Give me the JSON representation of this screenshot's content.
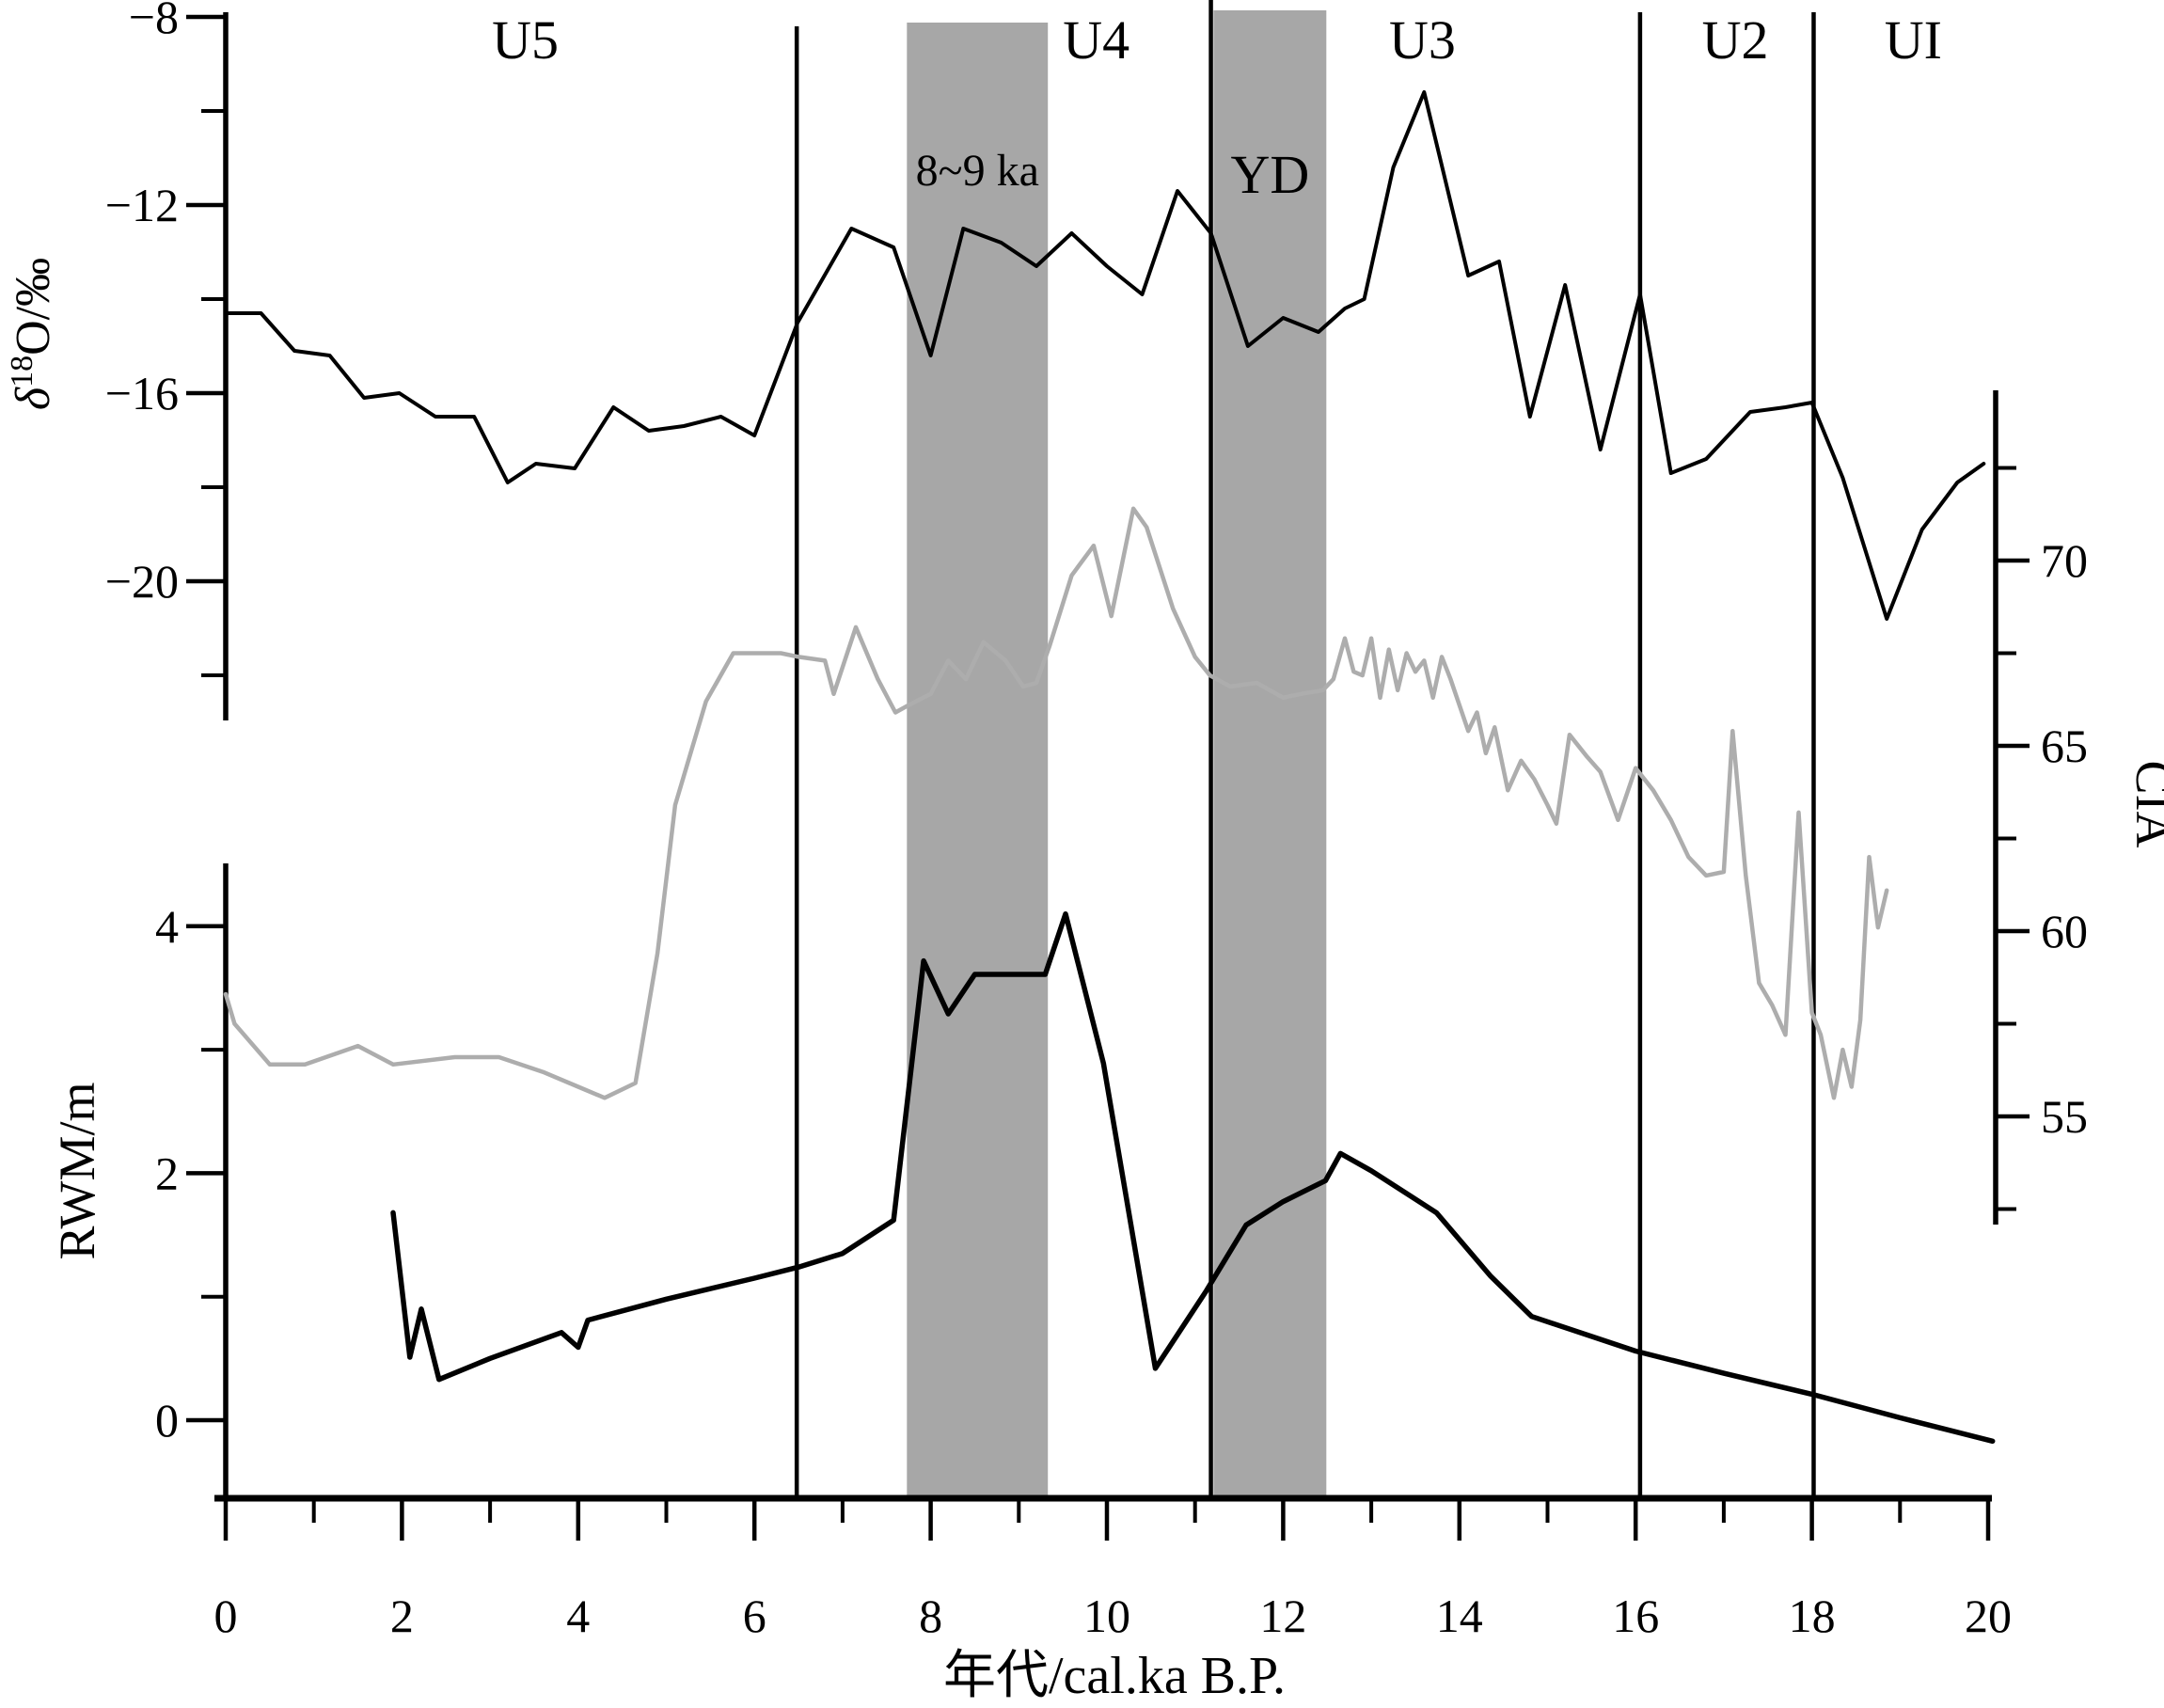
{
  "figure_title": "",
  "chart_data": {
    "type": "line",
    "xlabel": "年代/cal.ka B.P.",
    "xlim": [
      0,
      20
    ],
    "grid": false,
    "legend": "none",
    "x_axis": {
      "major_ticks": [
        0,
        2,
        4,
        6,
        8,
        10,
        12,
        14,
        16,
        18,
        20
      ],
      "minor_ticks": [
        1,
        3,
        5,
        7,
        9,
        11,
        13,
        15,
        17,
        19
      ]
    },
    "axes": {
      "d18o": {
        "label_prefix": "δ",
        "label_sup": "18",
        "label_suffix": "O/‰",
        "side": "left",
        "major_ticks": [
          -8,
          -12,
          -16,
          -20
        ],
        "minor_ticks": [
          -10,
          -14,
          -18,
          -22
        ],
        "range": [
          -22.8,
          -7.9
        ]
      },
      "rwm": {
        "label": "RWM/m",
        "side": "left",
        "major_ticks": [
          4,
          2,
          0
        ],
        "minor_ticks": [
          3,
          1
        ],
        "range": [
          -0.6,
          4.5
        ]
      },
      "cia": {
        "label": "CIA",
        "side": "right",
        "major_ticks": [
          70,
          65,
          60,
          55
        ],
        "minor_ticks": [
          72.5,
          67.5,
          62.5,
          57.5,
          52.5
        ],
        "range": [
          52.1,
          72.9
        ]
      }
    },
    "zones": {
      "labels": [
        "U5",
        "U4",
        "U3",
        "U2",
        "UI"
      ],
      "label_positions_ka": [
        3.4,
        9.88,
        13.58,
        17.13,
        19.15
      ],
      "boundaries_ka": [
        6.48,
        11.18,
        16.05,
        18.02
      ]
    },
    "bands": [
      {
        "label": "8~9 ka",
        "from_ka": 7.73,
        "to_ka": 9.33,
        "color": "#a7a7a7"
      },
      {
        "label": "YD",
        "from_ka": 11.21,
        "to_ka": 12.49,
        "color": "#a7a7a7"
      }
    ],
    "series": [
      {
        "name": "delta-18-O",
        "axis": "d18o",
        "color": "#000000",
        "x": [
          0,
          0.4,
          0.78,
          1.18,
          1.57,
          1.97,
          2.38,
          2.82,
          3.2,
          3.52,
          3.96,
          4.4,
          4.8,
          5.2,
          5.62,
          6.0,
          6.49,
          7.1,
          7.58,
          8.0,
          8.37,
          8.8,
          9.2,
          9.6,
          10.0,
          10.4,
          10.8,
          11.18,
          11.6,
          12.0,
          12.4,
          12.7,
          12.92,
          13.25,
          13.6,
          14.1,
          14.45,
          14.8,
          15.2,
          15.6,
          16.05,
          16.4,
          16.8,
          17.3,
          17.7,
          18.0,
          18.35,
          18.6,
          18.85,
          19.25,
          19.65,
          19.95
        ],
        "y": [
          -14.3,
          -14.3,
          -15.1,
          -15.2,
          -16.1,
          -16.0,
          -16.5,
          -16.5,
          -17.9,
          -17.5,
          -17.6,
          -16.3,
          -16.8,
          -16.7,
          -16.5,
          -16.9,
          -14.5,
          -12.5,
          -12.9,
          -15.2,
          -12.5,
          -12.8,
          -13.3,
          -12.6,
          -13.3,
          -13.9,
          -11.7,
          -12.6,
          -15.0,
          -14.4,
          -14.7,
          -14.2,
          -14.0,
          -11.2,
          -9.6,
          -13.5,
          -13.2,
          -16.5,
          -13.7,
          -17.2,
          -13.9,
          -17.7,
          -17.4,
          -16.4,
          -16.3,
          -16.2,
          -17.8,
          -19.3,
          -20.8,
          -18.9,
          -17.9,
          -17.5
        ]
      },
      {
        "name": "CIA",
        "axis": "cia",
        "color": "#adadad",
        "x": [
          0,
          0.1,
          0.5,
          0.9,
          1.5,
          1.9,
          2.6,
          3.1,
          3.6,
          4.0,
          4.3,
          4.65,
          4.9,
          5.1,
          5.45,
          5.76,
          6.3,
          6.5,
          6.8,
          6.9,
          7.15,
          7.4,
          7.6,
          7.75,
          8.0,
          8.2,
          8.4,
          8.6,
          8.85,
          9.05,
          9.2,
          9.35,
          9.6,
          9.85,
          10.05,
          10.3,
          10.45,
          10.75,
          11.0,
          11.17,
          11.4,
          11.7,
          12.0,
          12.2,
          12.45,
          12.57,
          12.7,
          12.8,
          12.9,
          13.0,
          13.1,
          13.2,
          13.3,
          13.4,
          13.5,
          13.6,
          13.7,
          13.8,
          13.9,
          14.0,
          14.1,
          14.2,
          14.3,
          14.4,
          14.55,
          14.7,
          14.85,
          15.0,
          15.1,
          15.25,
          15.45,
          15.6,
          15.8,
          16.0,
          16.2,
          16.4,
          16.6,
          16.8,
          17.0,
          17.1,
          17.25,
          17.4,
          17.55,
          17.7,
          17.85,
          18.0,
          18.1,
          18.25,
          18.35,
          18.45,
          18.55,
          18.65,
          18.75,
          18.85
        ],
        "y": [
          58.3,
          57.5,
          56.4,
          56.4,
          56.9,
          56.4,
          56.6,
          56.6,
          56.2,
          55.8,
          55.5,
          55.9,
          59.4,
          63.4,
          66.2,
          67.5,
          67.5,
          67.4,
          67.3,
          66.4,
          68.2,
          66.8,
          65.9,
          66.1,
          66.4,
          67.3,
          66.8,
          67.8,
          67.3,
          66.6,
          66.7,
          67.7,
          69.6,
          70.4,
          68.5,
          71.4,
          70.9,
          68.7,
          67.4,
          66.9,
          66.6,
          66.7,
          66.3,
          66.4,
          66.5,
          66.8,
          67.9,
          67.0,
          66.9,
          67.9,
          66.3,
          67.6,
          66.5,
          67.5,
          67.0,
          67.3,
          66.3,
          67.4,
          66.8,
          66.1,
          65.4,
          65.9,
          64.8,
          65.5,
          63.8,
          64.6,
          64.1,
          63.4,
          62.9,
          65.3,
          64.7,
          64.3,
          63.0,
          64.4,
          63.8,
          63.0,
          62.0,
          61.5,
          61.6,
          65.4,
          61.5,
          58.6,
          58.0,
          57.2,
          63.2,
          57.8,
          57.2,
          55.5,
          56.8,
          55.8,
          57.6,
          62.0,
          60.1,
          61.1
        ]
      },
      {
        "name": "RWM",
        "axis": "rwm",
        "color": "#000000",
        "x": [
          1.9,
          2.09,
          2.22,
          2.42,
          3.0,
          3.81,
          4.0,
          4.11,
          5.0,
          6.0,
          6.5,
          7.0,
          7.58,
          7.92,
          8.2,
          8.5,
          9.3,
          9.53,
          9.96,
          10.55,
          11.13,
          11.58,
          12.0,
          12.48,
          12.65,
          13.0,
          13.74,
          14.35,
          14.82,
          16.0,
          17.0,
          18.0,
          19.0,
          20.05
        ],
        "y": [
          1.68,
          0.51,
          0.9,
          0.33,
          0.5,
          0.71,
          0.59,
          0.81,
          0.98,
          1.15,
          1.24,
          1.35,
          1.62,
          3.72,
          3.29,
          3.61,
          3.61,
          4.1,
          2.89,
          0.42,
          1.05,
          1.58,
          1.77,
          1.94,
          2.16,
          2.02,
          1.68,
          1.17,
          0.84,
          0.56,
          0.38,
          0.21,
          0.02,
          -0.17
        ]
      }
    ]
  }
}
